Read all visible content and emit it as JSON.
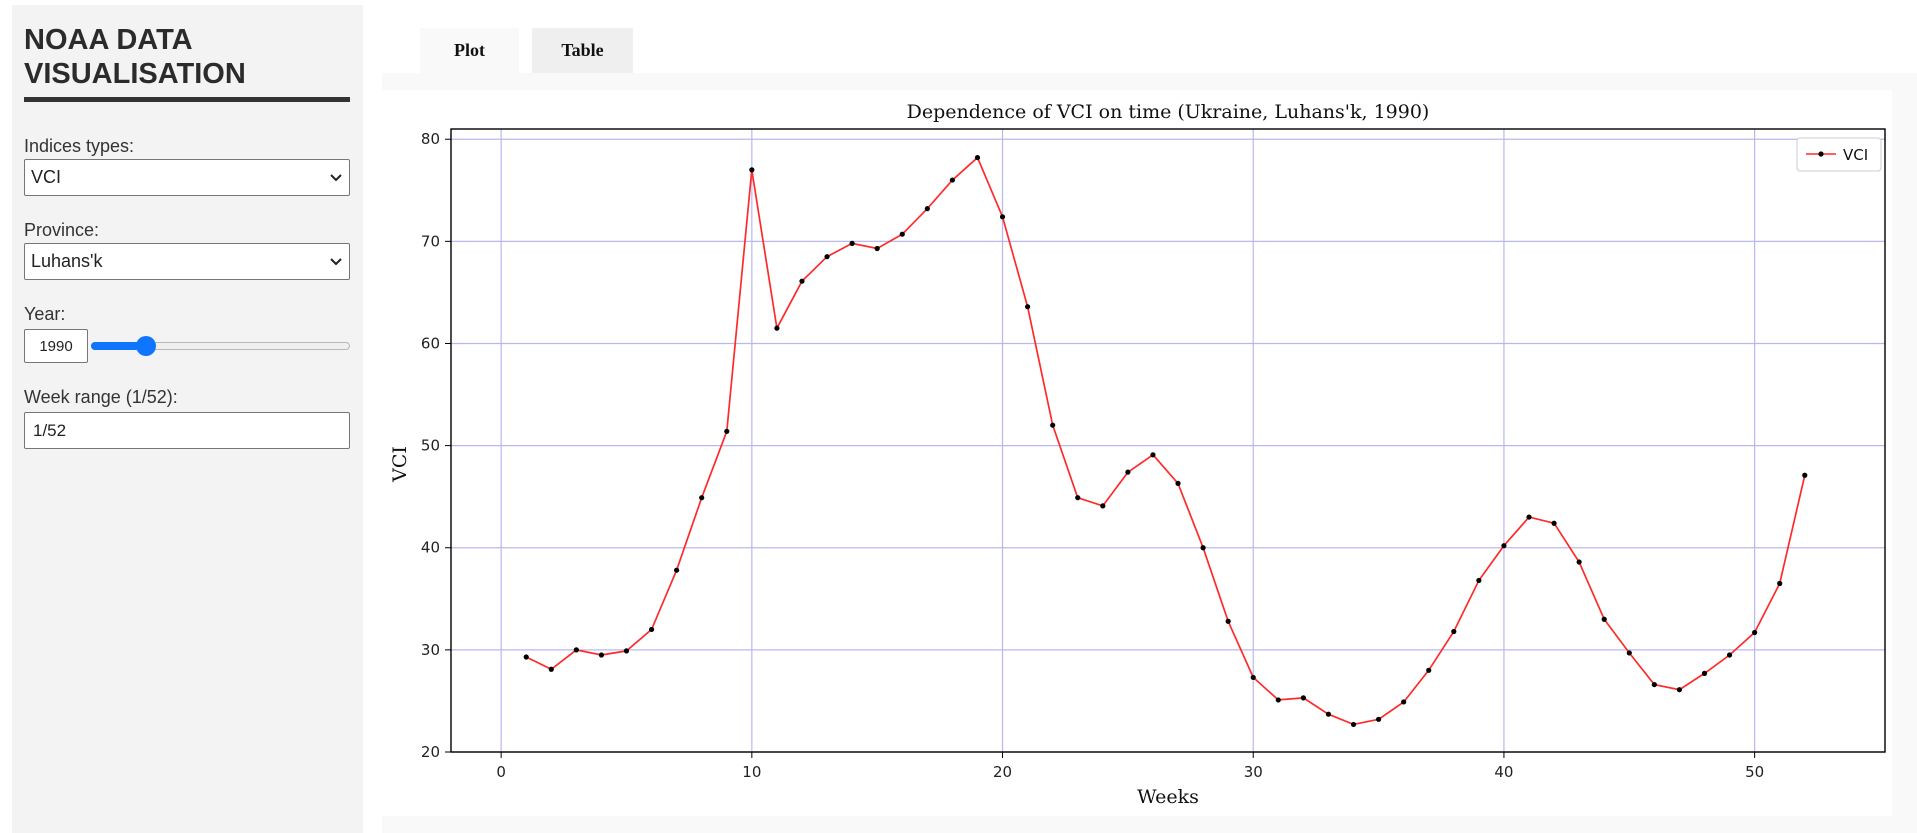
{
  "sidebar": {
    "title_line1": "NOAA DATA",
    "title_line2": "VISUALISATION",
    "indices_label": "Indices types:",
    "indices_value": "VCI",
    "province_label": "Province:",
    "province_value": "Luhans'k",
    "year_label": "Year:",
    "year_value": "1990",
    "year_slider_fraction": 0.19,
    "week_range_label": "Week range (1/52):",
    "week_range_value": "1/52"
  },
  "tabs": [
    {
      "label": "Plot",
      "active": true
    },
    {
      "label": "Table",
      "active": false
    }
  ],
  "colors": {
    "accent": "#0f75ff",
    "line": "#ff2a2a",
    "marker": "#000000",
    "grid": "#b8b8f0"
  },
  "chart_data": {
    "type": "line",
    "title": "Dependence of VCI on time (Ukraine, Luhans'k, 1990)",
    "xlabel": "Weeks",
    "ylabel": "VCI",
    "xlim": [
      -2,
      55.2
    ],
    "ylim": [
      20,
      81
    ],
    "xticks": [
      0,
      10,
      20,
      30,
      40,
      50
    ],
    "yticks": [
      20,
      30,
      40,
      50,
      60,
      70,
      80
    ],
    "grid": true,
    "legend_position": "top-right",
    "series": [
      {
        "name": "VCI",
        "x": [
          1,
          2,
          3,
          4,
          5,
          6,
          7,
          8,
          9,
          10,
          11,
          12,
          13,
          14,
          15,
          16,
          17,
          18,
          19,
          20,
          21,
          22,
          23,
          24,
          25,
          26,
          27,
          28,
          29,
          30,
          31,
          32,
          33,
          34,
          35,
          36,
          37,
          38,
          39,
          40,
          41,
          42,
          43,
          44,
          45,
          46,
          47,
          48,
          49,
          50,
          51,
          52
        ],
        "y": [
          29.3,
          28.1,
          30.0,
          29.5,
          29.9,
          32.0,
          37.8,
          44.9,
          51.4,
          77.0,
          61.5,
          66.1,
          68.5,
          69.8,
          69.3,
          70.7,
          73.2,
          76.0,
          78.2,
          72.4,
          63.6,
          52.0,
          44.9,
          44.1,
          47.4,
          49.1,
          46.3,
          40.0,
          32.8,
          27.3,
          25.1,
          25.3,
          23.7,
          22.7,
          23.2,
          24.9,
          28.0,
          31.8,
          36.8,
          40.2,
          43.0,
          42.4,
          38.6,
          33.0,
          29.7,
          26.6,
          26.1,
          27.7,
          29.5,
          31.7,
          36.5,
          47.1
        ]
      }
    ]
  }
}
